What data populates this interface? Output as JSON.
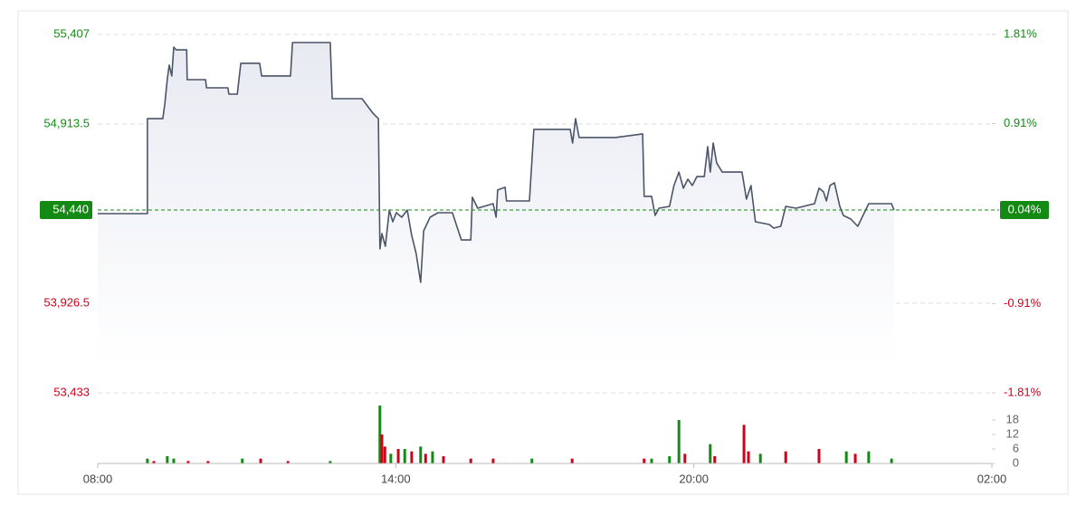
{
  "chart_data": {
    "type": "line",
    "xlim": [
      0,
      18
    ],
    "xticks": [
      {
        "value": 0,
        "label": "08:00"
      },
      {
        "value": 6,
        "label": "14:00"
      },
      {
        "value": 12,
        "label": "20:00"
      },
      {
        "value": 18,
        "label": "02:00"
      }
    ],
    "ylim": [
      53433,
      55407
    ],
    "yticks": [
      {
        "value": 55407,
        "label": "55,407"
      },
      {
        "value": 54913.5,
        "label": "54,913.5"
      },
      {
        "value": 53926.5,
        "label": "53,926.5"
      },
      {
        "value": 53433,
        "label": "53,433"
      }
    ],
    "y2lim": [
      -1.81,
      1.81
    ],
    "y2ticks": [
      {
        "value": 1.81,
        "label": "1.81%"
      },
      {
        "value": 0.91,
        "label": "0.91%"
      },
      {
        "value": -0.91,
        "label": "-0.91%"
      },
      {
        "value": -1.81,
        "label": "-1.81%"
      }
    ],
    "up_color": "#138a13",
    "down_color": "#d0021b",
    "grid": true,
    "last_price": {
      "value": 54440,
      "label": "54,440"
    },
    "last_change": {
      "value": 0.04,
      "label": "0.04%"
    },
    "series": [
      {
        "color": "#4a5568",
        "x": [
          0,
          1.0,
          1.0,
          1.31,
          1.35,
          1.4,
          1.44,
          1.49,
          1.53,
          1.58,
          1.79,
          1.8,
          2.17,
          2.19,
          2.62,
          2.64,
          2.81,
          2.88,
          3.26,
          3.3,
          3.88,
          3.92,
          4.68,
          4.72,
          5.32,
          5.54,
          5.65,
          5.68,
          5.72,
          5.79,
          5.87,
          5.94,
          6.01,
          6.12,
          6.23,
          6.32,
          6.41,
          6.5,
          6.56,
          6.69,
          6.85,
          7.14,
          7.23,
          7.32,
          7.51,
          7.54,
          7.65,
          7.96,
          8.02,
          8.05,
          8.2,
          8.23,
          8.69,
          8.78,
          9.51,
          9.56,
          9.62,
          9.69,
          10.42,
          10.97,
          11.0,
          11.15,
          11.22,
          11.3,
          11.51,
          11.6,
          11.7,
          11.79,
          11.88,
          11.97,
          12.06,
          12.21,
          12.28,
          12.33,
          12.39,
          12.46,
          12.57,
          12.97,
          13.06,
          13.15,
          13.24,
          13.52,
          13.61,
          13.75,
          13.85,
          14.06,
          14.43,
          14.52,
          14.61,
          14.67,
          14.74,
          14.83,
          14.94,
          15.01,
          15.16,
          15.3,
          15.52,
          15.98,
          16.03
        ],
        "values": [
          54420,
          54420,
          54943,
          54943,
          55023,
          55158,
          55238,
          55178,
          55337,
          55322,
          55322,
          55158,
          55158,
          55113,
          55113,
          55078,
          55078,
          55248,
          55248,
          55178,
          55178,
          55362,
          55362,
          55053,
          55053,
          54973,
          54943,
          54226,
          54310,
          54240,
          54440,
          54375,
          54425,
          54400,
          54440,
          54300,
          54201,
          54041,
          54325,
          54400,
          54425,
          54425,
          54350,
          54275,
          54275,
          54510,
          54450,
          54475,
          54400,
          54550,
          54565,
          54490,
          54490,
          54884,
          54884,
          54809,
          54943,
          54839,
          54839,
          54859,
          54515,
          54515,
          54410,
          54450,
          54460,
          54575,
          54649,
          54560,
          54610,
          54575,
          54624,
          54624,
          54789,
          54649,
          54809,
          54699,
          54649,
          54649,
          54500,
          54575,
          54375,
          54360,
          54340,
          54350,
          54460,
          54450,
          54475,
          54560,
          54540,
          54490,
          54575,
          54590,
          54460,
          54410,
          54390,
          54350,
          54475,
          54475,
          54440
        ]
      }
    ],
    "volume": {
      "ylim": [
        0,
        24
      ],
      "yticks": [
        0,
        6,
        12,
        18
      ],
      "x": [
        1.0,
        1.13,
        1.4,
        1.53,
        1.82,
        2.22,
        2.91,
        3.28,
        3.83,
        4.68,
        5.68,
        5.72,
        5.78,
        5.9,
        6.05,
        6.18,
        6.32,
        6.5,
        6.6,
        6.74,
        6.96,
        7.51,
        7.96,
        8.74,
        9.55,
        11.0,
        11.15,
        11.51,
        11.7,
        11.82,
        12.33,
        12.42,
        13.01,
        13.1,
        13.34,
        13.85,
        14.52,
        15.07,
        15.25,
        15.52,
        15.98
      ],
      "values": [
        2,
        1,
        3,
        2,
        1,
        1,
        2,
        2,
        1,
        1,
        24,
        12,
        7,
        4,
        6,
        6,
        5,
        7,
        4,
        5,
        3,
        2,
        2,
        2,
        2,
        2,
        2,
        3,
        18,
        4,
        8,
        3,
        16,
        5,
        4,
        5,
        6,
        5,
        4,
        5,
        2
      ],
      "colors": [
        "#138a13",
        "#d0021b",
        "#138a13",
        "#138a13",
        "#d0021b",
        "#d0021b",
        "#138a13",
        "#d0021b",
        "#d0021b",
        "#138a13",
        "#138a13",
        "#d0021b",
        "#d0021b",
        "#138a13",
        "#d0021b",
        "#138a13",
        "#d0021b",
        "#138a13",
        "#d0021b",
        "#138a13",
        "#d0021b",
        "#d0021b",
        "#d0021b",
        "#138a13",
        "#d0021b",
        "#d0021b",
        "#138a13",
        "#138a13",
        "#138a13",
        "#d0021b",
        "#138a13",
        "#d0021b",
        "#d0021b",
        "#d0021b",
        "#138a13",
        "#d0021b",
        "#d0021b",
        "#138a13",
        "#d0021b",
        "#138a13",
        "#138a13"
      ]
    }
  }
}
